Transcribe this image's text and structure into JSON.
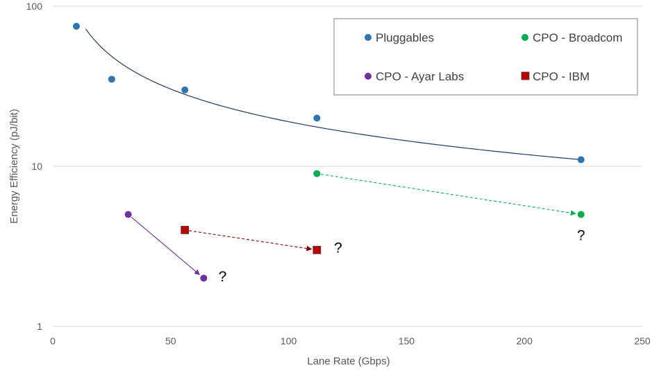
{
  "chart_data": {
    "type": "scatter",
    "title": "",
    "xlabel": "Lane Rate (Gbps)",
    "ylabel": "Energy Efficiency (pJ/bit)",
    "xlim": [
      0,
      250
    ],
    "ylim": [
      1,
      100
    ],
    "yscale": "log",
    "x_ticks": [
      "0",
      "50",
      "100",
      "150",
      "200",
      "250"
    ],
    "y_ticks": [
      "1",
      "10",
      "100"
    ],
    "grid": "horizontal",
    "legend_position": "top-right",
    "series": [
      {
        "name": "Pluggables",
        "marker": "circle",
        "color": "#2e75b6",
        "points": [
          [
            10,
            75
          ],
          [
            25,
            35
          ],
          [
            56,
            30
          ],
          [
            112,
            20
          ],
          [
            224,
            11
          ]
        ],
        "trendline": {
          "color": "#203864",
          "from_x": 14,
          "to_x": 224,
          "y_at_from": 72,
          "y_at_to": 11
        }
      },
      {
        "name": "CPO - Broadcom",
        "marker": "circle",
        "color": "#00b050",
        "points": [
          [
            112,
            9
          ],
          [
            224,
            5
          ]
        ],
        "arrow": {
          "from": 0,
          "to": 1,
          "color": "#00b050"
        }
      },
      {
        "name": "CPO - Ayar Labs",
        "marker": "circle",
        "color": "#7030a0",
        "points": [
          [
            32,
            5
          ],
          [
            64,
            2
          ]
        ],
        "arrow": {
          "from": 0,
          "to": 1,
          "color": "#7030a0",
          "dashed": false
        }
      },
      {
        "name": "CPO - IBM",
        "marker": "square",
        "color": "#c00000",
        "points": [
          [
            56,
            4
          ],
          [
            112,
            3
          ]
        ],
        "arrow": {
          "from": 0,
          "to": 1,
          "color": "#8b0000"
        }
      }
    ],
    "annotations": [
      {
        "text": "?",
        "x": 72,
        "y": 2.05
      },
      {
        "text": "?",
        "x": 121,
        "y": 3.1
      },
      {
        "text": "?",
        "x": 224,
        "y": 3.7
      }
    ]
  }
}
